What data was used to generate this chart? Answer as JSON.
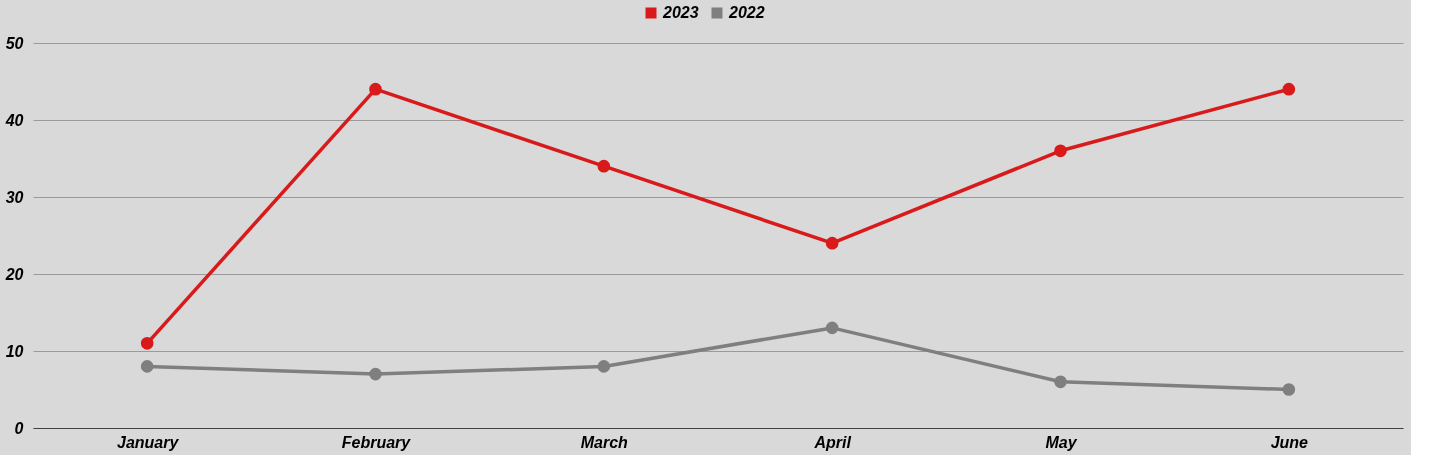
{
  "chart_data": {
    "type": "line",
    "categories": [
      "January",
      "February",
      "March",
      "April",
      "May",
      "June"
    ],
    "series": [
      {
        "name": "2023",
        "color": "#d91a1a",
        "values": [
          11,
          44,
          34,
          24,
          36,
          44
        ]
      },
      {
        "name": "2022",
        "color": "#7f7f7f",
        "values": [
          8,
          7,
          8,
          13,
          6,
          5
        ]
      }
    ],
    "ylim": [
      0,
      50
    ],
    "yticks": [
      0,
      10,
      20,
      30,
      40,
      50
    ],
    "grid": "y",
    "legend": "top",
    "marker": "circle",
    "line_style": "solid"
  }
}
